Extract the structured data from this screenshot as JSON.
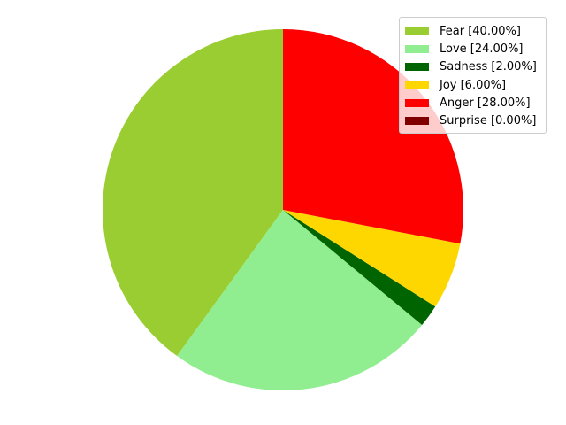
{
  "chart_data": {
    "type": "pie",
    "title": "",
    "categories": [
      "Fear",
      "Love",
      "Sadness",
      "Joy",
      "Anger",
      "Surprise"
    ],
    "values": [
      40.0,
      24.0,
      2.0,
      6.0,
      28.0,
      0.0
    ],
    "colors": [
      "#9acd32",
      "#90ee90",
      "#006400",
      "#ffd700",
      "#ff0000",
      "#800000"
    ],
    "legend_labels": [
      "Fear [40.00%]",
      "Love [24.00%]",
      "Sadness [2.00%]",
      "Joy [6.00%]",
      "Anger [28.00%]",
      "Surprise [0.00%]"
    ],
    "start_angle_deg": 90,
    "direction": "counterclockwise",
    "legend_position": "top-right"
  }
}
